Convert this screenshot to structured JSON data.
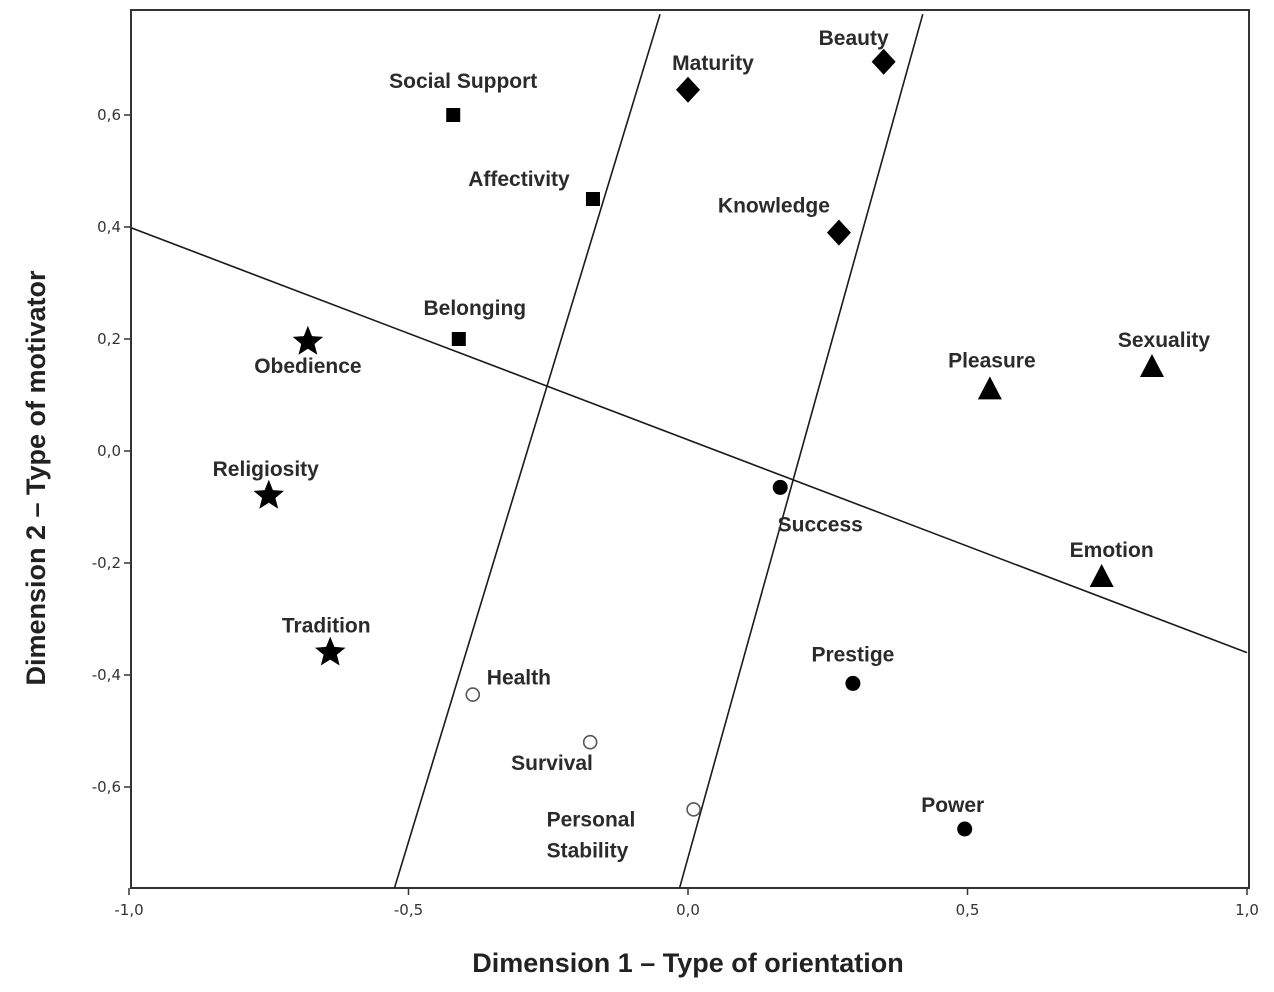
{
  "chart_data": {
    "type": "scatter",
    "xlabel": "Dimension 1 – Type of orientation",
    "ylabel": "Dimension 2 – Type of motivator",
    "xlim": [
      -1.0,
      1.0
    ],
    "ylim": [
      -0.78,
      0.78
    ],
    "x_ticks": [
      -1.0,
      -0.5,
      0.0,
      0.5,
      1.0
    ],
    "x_tick_labels": [
      "-1,0",
      "-0,5",
      "0,0",
      "0,5",
      "1,0"
    ],
    "y_ticks": [
      -0.6,
      -0.4,
      -0.2,
      0.0,
      0.2,
      0.4,
      0.6
    ],
    "y_tick_labels": [
      "-0,6",
      "-0,4",
      "-0,2",
      "0,0",
      "0,2",
      "0,4",
      "0,6"
    ],
    "grid": false,
    "legend": "none",
    "marker_color": "#000000",
    "points": [
      {
        "label": "Social Support",
        "x": -0.42,
        "y": 0.6,
        "marker": "square"
      },
      {
        "label": "Affectivity",
        "x": -0.17,
        "y": 0.45,
        "marker": "square"
      },
      {
        "label": "Belonging",
        "x": -0.41,
        "y": 0.2,
        "marker": "square"
      },
      {
        "label": "Maturity",
        "x": 0.0,
        "y": 0.645,
        "marker": "diamond"
      },
      {
        "label": "Beauty",
        "x": 0.35,
        "y": 0.695,
        "marker": "diamond"
      },
      {
        "label": "Knowledge",
        "x": 0.27,
        "y": 0.39,
        "marker": "diamond"
      },
      {
        "label": "Obedience",
        "x": -0.68,
        "y": 0.195,
        "marker": "star"
      },
      {
        "label": "Religiosity",
        "x": -0.75,
        "y": -0.08,
        "marker": "star"
      },
      {
        "label": "Tradition",
        "x": -0.64,
        "y": -0.36,
        "marker": "star"
      },
      {
        "label": "Pleasure",
        "x": 0.54,
        "y": 0.11,
        "marker": "triangle"
      },
      {
        "label": "Sexuality",
        "x": 0.83,
        "y": 0.15,
        "marker": "triangle"
      },
      {
        "label": "Emotion",
        "x": 0.74,
        "y": -0.225,
        "marker": "triangle"
      },
      {
        "label": "Success",
        "x": 0.165,
        "y": -0.065,
        "marker": "filled-circle"
      },
      {
        "label": "Prestige",
        "x": 0.295,
        "y": -0.415,
        "marker": "filled-circle"
      },
      {
        "label": "Power",
        "x": 0.495,
        "y": -0.675,
        "marker": "filled-circle"
      },
      {
        "label": "Health",
        "x": -0.385,
        "y": -0.435,
        "marker": "open-circle"
      },
      {
        "label": "Survival",
        "x": -0.175,
        "y": -0.52,
        "marker": "open-circle"
      },
      {
        "label": "Personal Stability",
        "x": 0.01,
        "y": -0.64,
        "marker": "open-circle"
      }
    ],
    "separator_lines": [
      {
        "from": [
          -1.0,
          0.4
        ],
        "to": [
          1.0,
          -0.36
        ]
      },
      {
        "from": [
          -0.525,
          -0.78
        ],
        "to": [
          -0.05,
          0.78
        ]
      },
      {
        "from": [
          -0.015,
          -0.78
        ],
        "to": [
          0.42,
          0.78
        ]
      }
    ]
  }
}
